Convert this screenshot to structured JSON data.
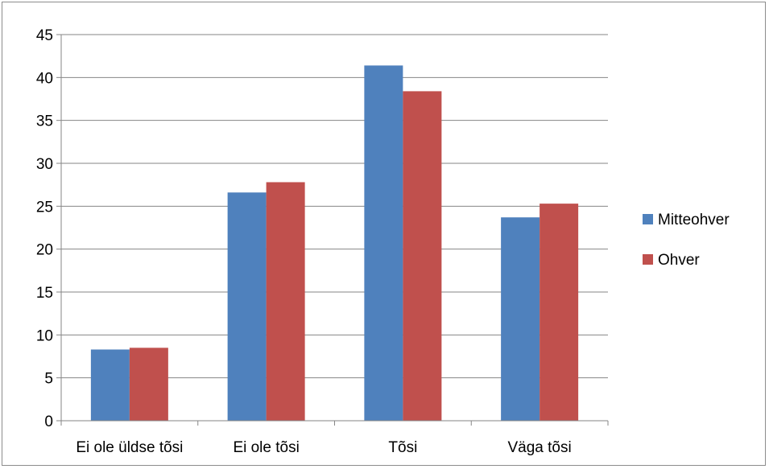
{
  "chart_data": {
    "type": "bar",
    "categories": [
      "Ei ole üldse tõsi",
      "Ei ole tõsi",
      "Tõsi",
      "Väga tõsi"
    ],
    "series": [
      {
        "name": "Mitteohver",
        "values": [
          8.3,
          26.6,
          41.4,
          23.7
        ],
        "color": "#4F81BD"
      },
      {
        "name": "Ohver",
        "values": [
          8.5,
          27.8,
          38.4,
          25.3
        ],
        "color": "#C0504D"
      }
    ],
    "y_ticks": [
      "0",
      "5",
      "10",
      "15",
      "20",
      "25",
      "30",
      "35",
      "40",
      "45"
    ],
    "ylim": [
      0,
      45
    ],
    "grid": true,
    "legend_position": "right",
    "title": "",
    "xlabel": "",
    "ylabel": ""
  }
}
